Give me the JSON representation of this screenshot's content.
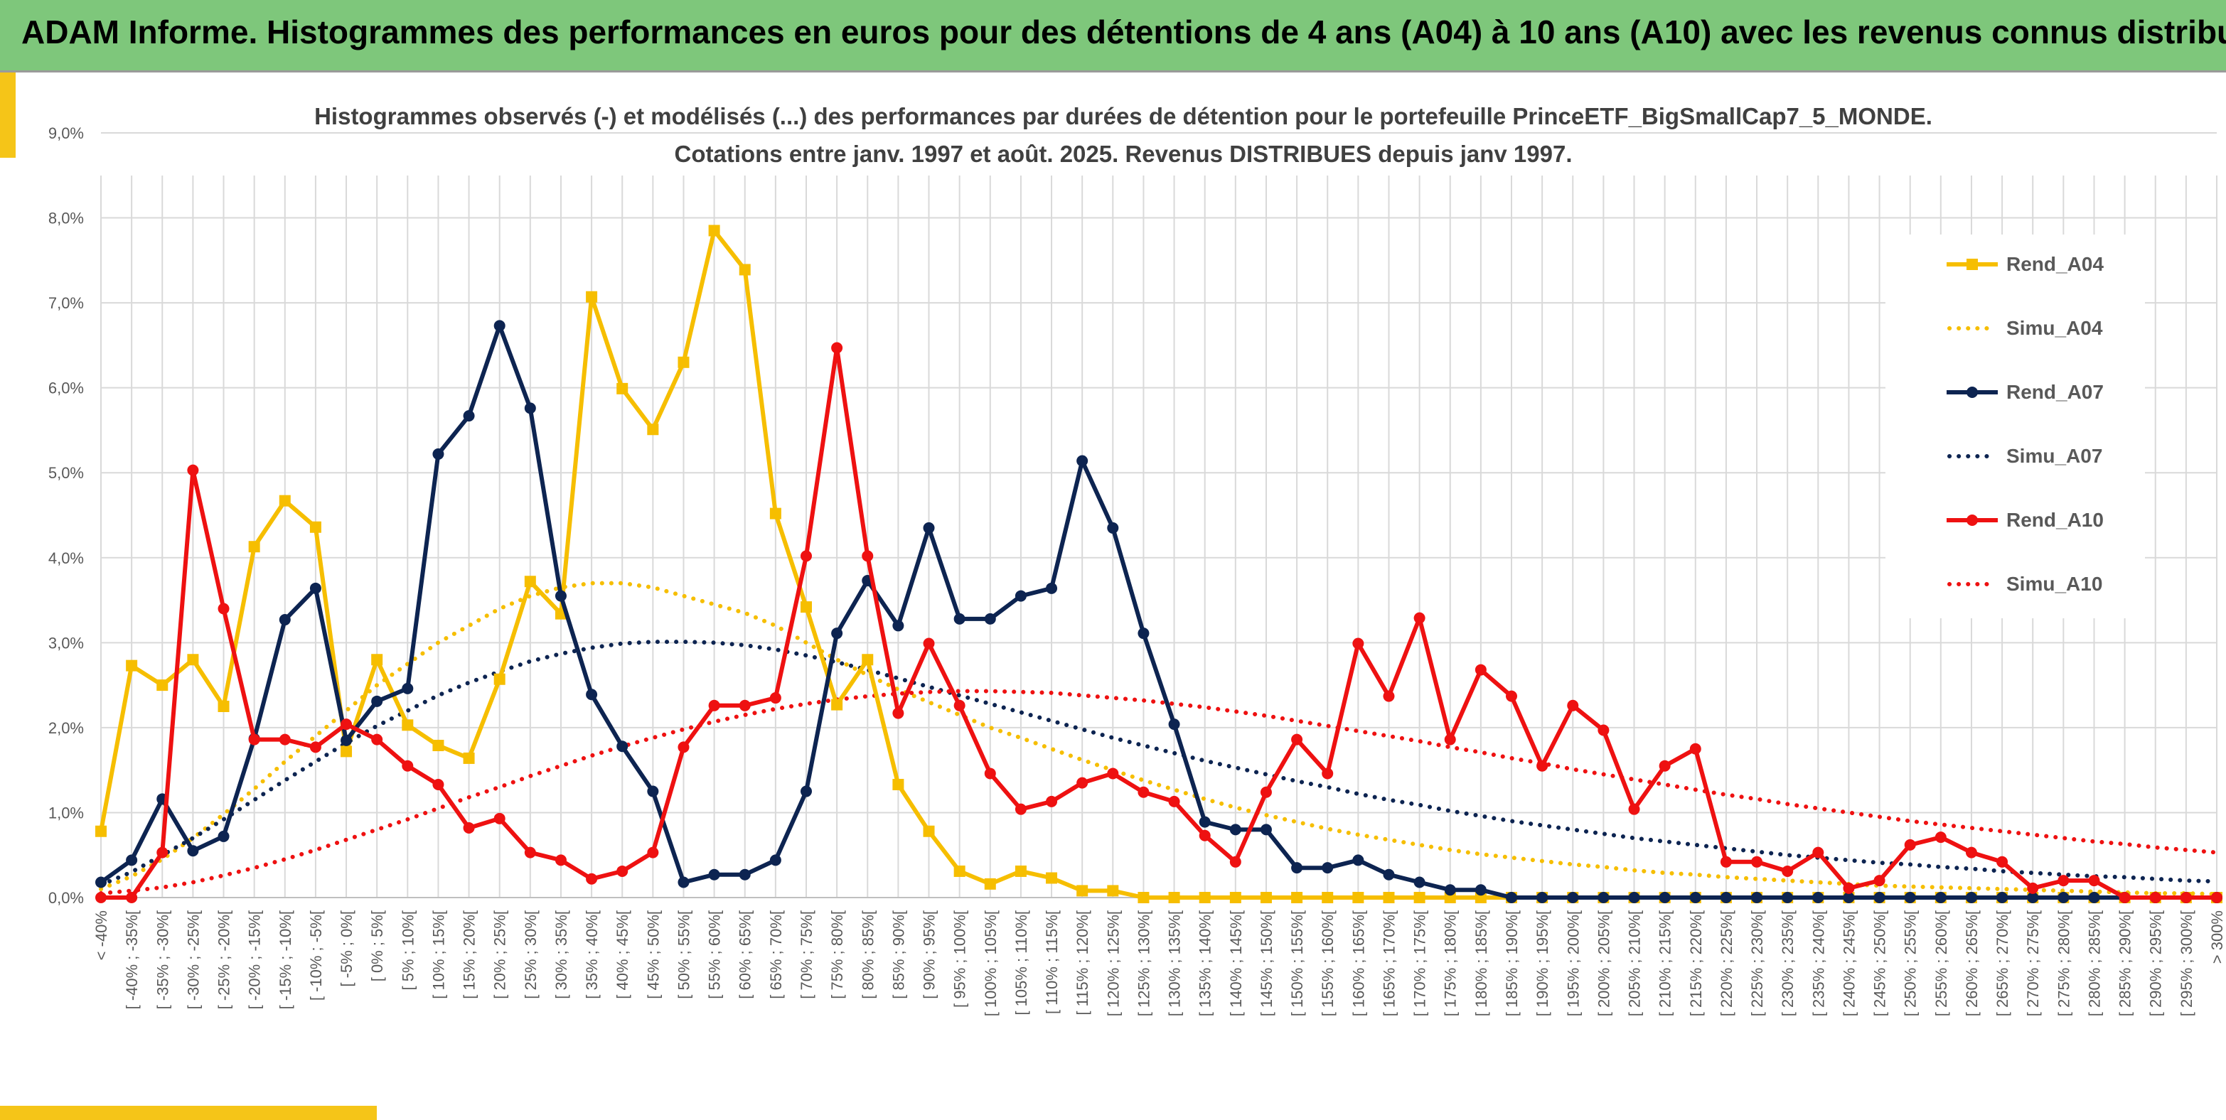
{
  "banner": {
    "title": "ADAM Informe. Histogrammes des performances en euros pour des détentions de 4 ans (A04) à 10 ans (A10) avec les revenus connus distribués"
  },
  "colors": {
    "A04": "#f6be00",
    "A07": "#0d2451",
    "A10": "#ee1111",
    "banner": "#7ec77b",
    "grid": "#d9d9d9"
  },
  "chart_data": {
    "type": "line",
    "title": "Histogrammes observés (-) et modélisés (...) des performances par durées de détention pour le portefeuille PrinceETF_BigSmallCap7_5_MONDE.",
    "subtitle": "Cotations entre janv. 1997 et août. 2025. Revenus DISTRIBUES depuis janv 1997.",
    "ylim": [
      0,
      9
    ],
    "y_ticks": [
      "0,0%",
      "1,0%",
      "2,0%",
      "3,0%",
      "4,0%",
      "5,0%",
      "6,0%",
      "7,0%",
      "8,0%",
      "9,0%"
    ],
    "grid": true,
    "legend_position": "right",
    "categories": [
      "< -40%",
      "[ -40% ; -35%[",
      "[ -35% ; -30%[",
      "[ -30% ; -25%[",
      "[ -25% ; -20%[",
      "[ -20% ; -15%[",
      "[ -15% ; -10%[",
      "[ -10% ; -5%[",
      "[ -5% ; 0%[",
      "[ 0% ; 5%[",
      "[ 5% ; 10%[",
      "[ 10% ; 15%[",
      "[ 15% ; 20%[",
      "[ 20% ; 25%[",
      "[ 25% ; 30%[",
      "[ 30% ; 35%[",
      "[ 35% ; 40%[",
      "[ 40% ; 45%[",
      "[ 45% ; 50%[",
      "[ 50% ; 55%[",
      "[ 55% ; 60%[",
      "[ 60% ; 65%[",
      "[ 65% ; 70%[",
      "[ 70% ; 75%[",
      "[ 75% ; 80%[",
      "[ 80% ; 85%[",
      "[ 85% ; 90%[",
      "[ 90% ; 95%[",
      "[ 95% ; 100%[",
      "[ 100% ; 105%[",
      "[ 105% ; 110%[",
      "[ 110% ; 115%[",
      "[ 115% ; 120%[",
      "[ 120% ; 125%[",
      "[ 125% ; 130%[",
      "[ 130% ; 135%[",
      "[ 135% ; 140%[",
      "[ 140% ; 145%[",
      "[ 145% ; 150%[",
      "[ 150% ; 155%[",
      "[ 155% ; 160%[",
      "[ 160% ; 165%[",
      "[ 165% ; 170%[",
      "[ 170% ; 175%[",
      "[ 175% ; 180%[",
      "[ 180% ; 185%[",
      "[ 185% ; 190%[",
      "[ 190% ; 195%[",
      "[ 195% ; 200%[",
      "[ 200% ; 205%[",
      "[ 205% ; 210%[",
      "[ 210% ; 215%[",
      "[ 215% ; 220%[",
      "[ 220% ; 225%[",
      "[ 225% ; 230%[",
      "[ 230% ; 235%[",
      "[ 235% ; 240%[",
      "[ 240% ; 245%[",
      "[ 245% ; 250%[",
      "[ 250% ; 255%[",
      "[ 255% ; 260%[",
      "[ 260% ; 265%[",
      "[ 265% ; 270%[",
      "[ 270% ; 275%[",
      "[ 275% ; 280%[",
      "[ 280% ; 285%[",
      "[ 285% ; 290%[",
      "[ 290% ; 295%[",
      "[ 295% ; 300%[",
      "> 300%"
    ],
    "series": [
      {
        "name": "Rend_A04",
        "style": "solid",
        "marker": "square",
        "color": "#f6be00",
        "values": [
          0.78,
          2.73,
          2.5,
          2.8,
          2.25,
          4.13,
          4.67,
          4.36,
          1.72,
          2.8,
          2.03,
          1.79,
          1.64,
          2.57,
          3.72,
          3.34,
          7.07,
          5.99,
          5.51,
          6.3,
          7.85,
          7.39,
          4.52,
          3.42,
          2.27,
          2.8,
          1.33,
          0.78,
          0.31,
          0.16,
          0.31,
          0.23,
          0.08,
          0.08,
          0,
          0,
          0,
          0,
          0,
          0,
          0,
          0,
          0,
          0,
          0,
          0,
          0,
          0,
          0,
          0,
          0,
          0,
          0,
          0,
          0,
          0,
          0,
          0,
          0,
          0,
          0,
          0,
          0,
          0,
          0,
          0,
          0,
          0,
          0,
          0
        ]
      },
      {
        "name": "Simu_A04",
        "style": "dotted",
        "color": "#f6be00",
        "values": [
          0.1,
          0.25,
          0.45,
          0.7,
          0.98,
          1.28,
          1.6,
          1.9,
          2.2,
          2.5,
          2.75,
          3.0,
          3.2,
          3.4,
          3.55,
          3.65,
          3.7,
          3.7,
          3.65,
          3.55,
          3.45,
          3.35,
          3.2,
          3.0,
          2.8,
          2.62,
          2.45,
          2.3,
          2.15,
          2.0,
          1.88,
          1.75,
          1.62,
          1.5,
          1.38,
          1.27,
          1.16,
          1.06,
          0.97,
          0.89,
          0.81,
          0.74,
          0.68,
          0.62,
          0.56,
          0.51,
          0.47,
          0.43,
          0.39,
          0.36,
          0.32,
          0.29,
          0.27,
          0.24,
          0.22,
          0.2,
          0.18,
          0.16,
          0.14,
          0.13,
          0.12,
          0.11,
          0.1,
          0.09,
          0.08,
          0.07,
          0.06,
          0.05,
          0.05,
          0.04
        ]
      },
      {
        "name": "Rend_A07",
        "style": "solid",
        "marker": "circle",
        "color": "#0d2451",
        "values": [
          0.18,
          0.44,
          1.16,
          0.55,
          0.72,
          1.87,
          3.27,
          3.64,
          1.85,
          2.31,
          2.46,
          5.22,
          5.67,
          6.73,
          5.76,
          3.55,
          2.39,
          1.78,
          1.25,
          0.18,
          0.27,
          0.27,
          0.44,
          1.25,
          3.11,
          3.73,
          3.2,
          4.35,
          3.28,
          3.28,
          3.55,
          3.64,
          5.14,
          4.35,
          3.11,
          2.04,
          0.89,
          0.8,
          0.8,
          0.35,
          0.35,
          0.44,
          0.27,
          0.18,
          0.09,
          0.09,
          0,
          0,
          0,
          0,
          0,
          0,
          0,
          0,
          0,
          0,
          0,
          0,
          0,
          0,
          0,
          0,
          0,
          0,
          0,
          0,
          0,
          0,
          0,
          0
        ]
      },
      {
        "name": "Simu_A07",
        "style": "dotted",
        "color": "#0d2451",
        "values": [
          0.15,
          0.3,
          0.5,
          0.7,
          0.92,
          1.15,
          1.38,
          1.6,
          1.82,
          2.02,
          2.2,
          2.38,
          2.53,
          2.66,
          2.78,
          2.87,
          2.94,
          2.99,
          3.01,
          3.01,
          3.0,
          2.97,
          2.92,
          2.85,
          2.77,
          2.68,
          2.58,
          2.48,
          2.38,
          2.28,
          2.18,
          2.08,
          1.98,
          1.88,
          1.79,
          1.7,
          1.61,
          1.53,
          1.45,
          1.37,
          1.3,
          1.22,
          1.15,
          1.09,
          1.02,
          0.96,
          0.9,
          0.85,
          0.8,
          0.75,
          0.7,
          0.66,
          0.62,
          0.58,
          0.54,
          0.5,
          0.47,
          0.44,
          0.41,
          0.39,
          0.36,
          0.34,
          0.31,
          0.29,
          0.27,
          0.25,
          0.24,
          0.22,
          0.2,
          0.19
        ]
      },
      {
        "name": "Rend_A10",
        "style": "solid",
        "marker": "circle",
        "color": "#ee1111",
        "values": [
          0,
          0,
          0.53,
          5.03,
          3.4,
          1.86,
          1.86,
          1.77,
          2.04,
          1.86,
          1.55,
          1.33,
          0.82,
          0.93,
          0.53,
          0.44,
          0.22,
          0.31,
          0.53,
          1.77,
          2.26,
          2.26,
          2.35,
          4.02,
          6.47,
          4.02,
          2.17,
          2.99,
          2.26,
          1.46,
          1.04,
          1.13,
          1.35,
          1.46,
          1.24,
          1.13,
          0.73,
          0.42,
          1.24,
          1.86,
          1.46,
          2.99,
          2.37,
          3.29,
          1.86,
          2.68,
          2.37,
          1.55,
          2.26,
          1.97,
          1.04,
          1.55,
          1.75,
          0.42,
          0.42,
          0.31,
          0.53,
          0.11,
          0.2,
          0.62,
          0.71,
          0.53,
          0.42,
          0.11,
          0.2,
          0.2,
          0,
          0,
          0,
          0
        ]
      },
      {
        "name": "Simu_A10",
        "style": "dotted",
        "color": "#ee1111",
        "values": [
          0.05,
          0.08,
          0.12,
          0.18,
          0.26,
          0.35,
          0.45,
          0.56,
          0.68,
          0.8,
          0.92,
          1.05,
          1.18,
          1.3,
          1.43,
          1.55,
          1.67,
          1.78,
          1.88,
          1.98,
          2.07,
          2.15,
          2.22,
          2.28,
          2.33,
          2.37,
          2.4,
          2.42,
          2.43,
          2.43,
          2.42,
          2.41,
          2.38,
          2.35,
          2.32,
          2.28,
          2.24,
          2.19,
          2.14,
          2.08,
          2.02,
          1.96,
          1.9,
          1.84,
          1.77,
          1.71,
          1.64,
          1.58,
          1.51,
          1.45,
          1.39,
          1.33,
          1.27,
          1.21,
          1.16,
          1.1,
          1.05,
          1.0,
          0.95,
          0.9,
          0.86,
          0.82,
          0.78,
          0.74,
          0.7,
          0.66,
          0.63,
          0.59,
          0.56,
          0.53
        ]
      }
    ]
  }
}
